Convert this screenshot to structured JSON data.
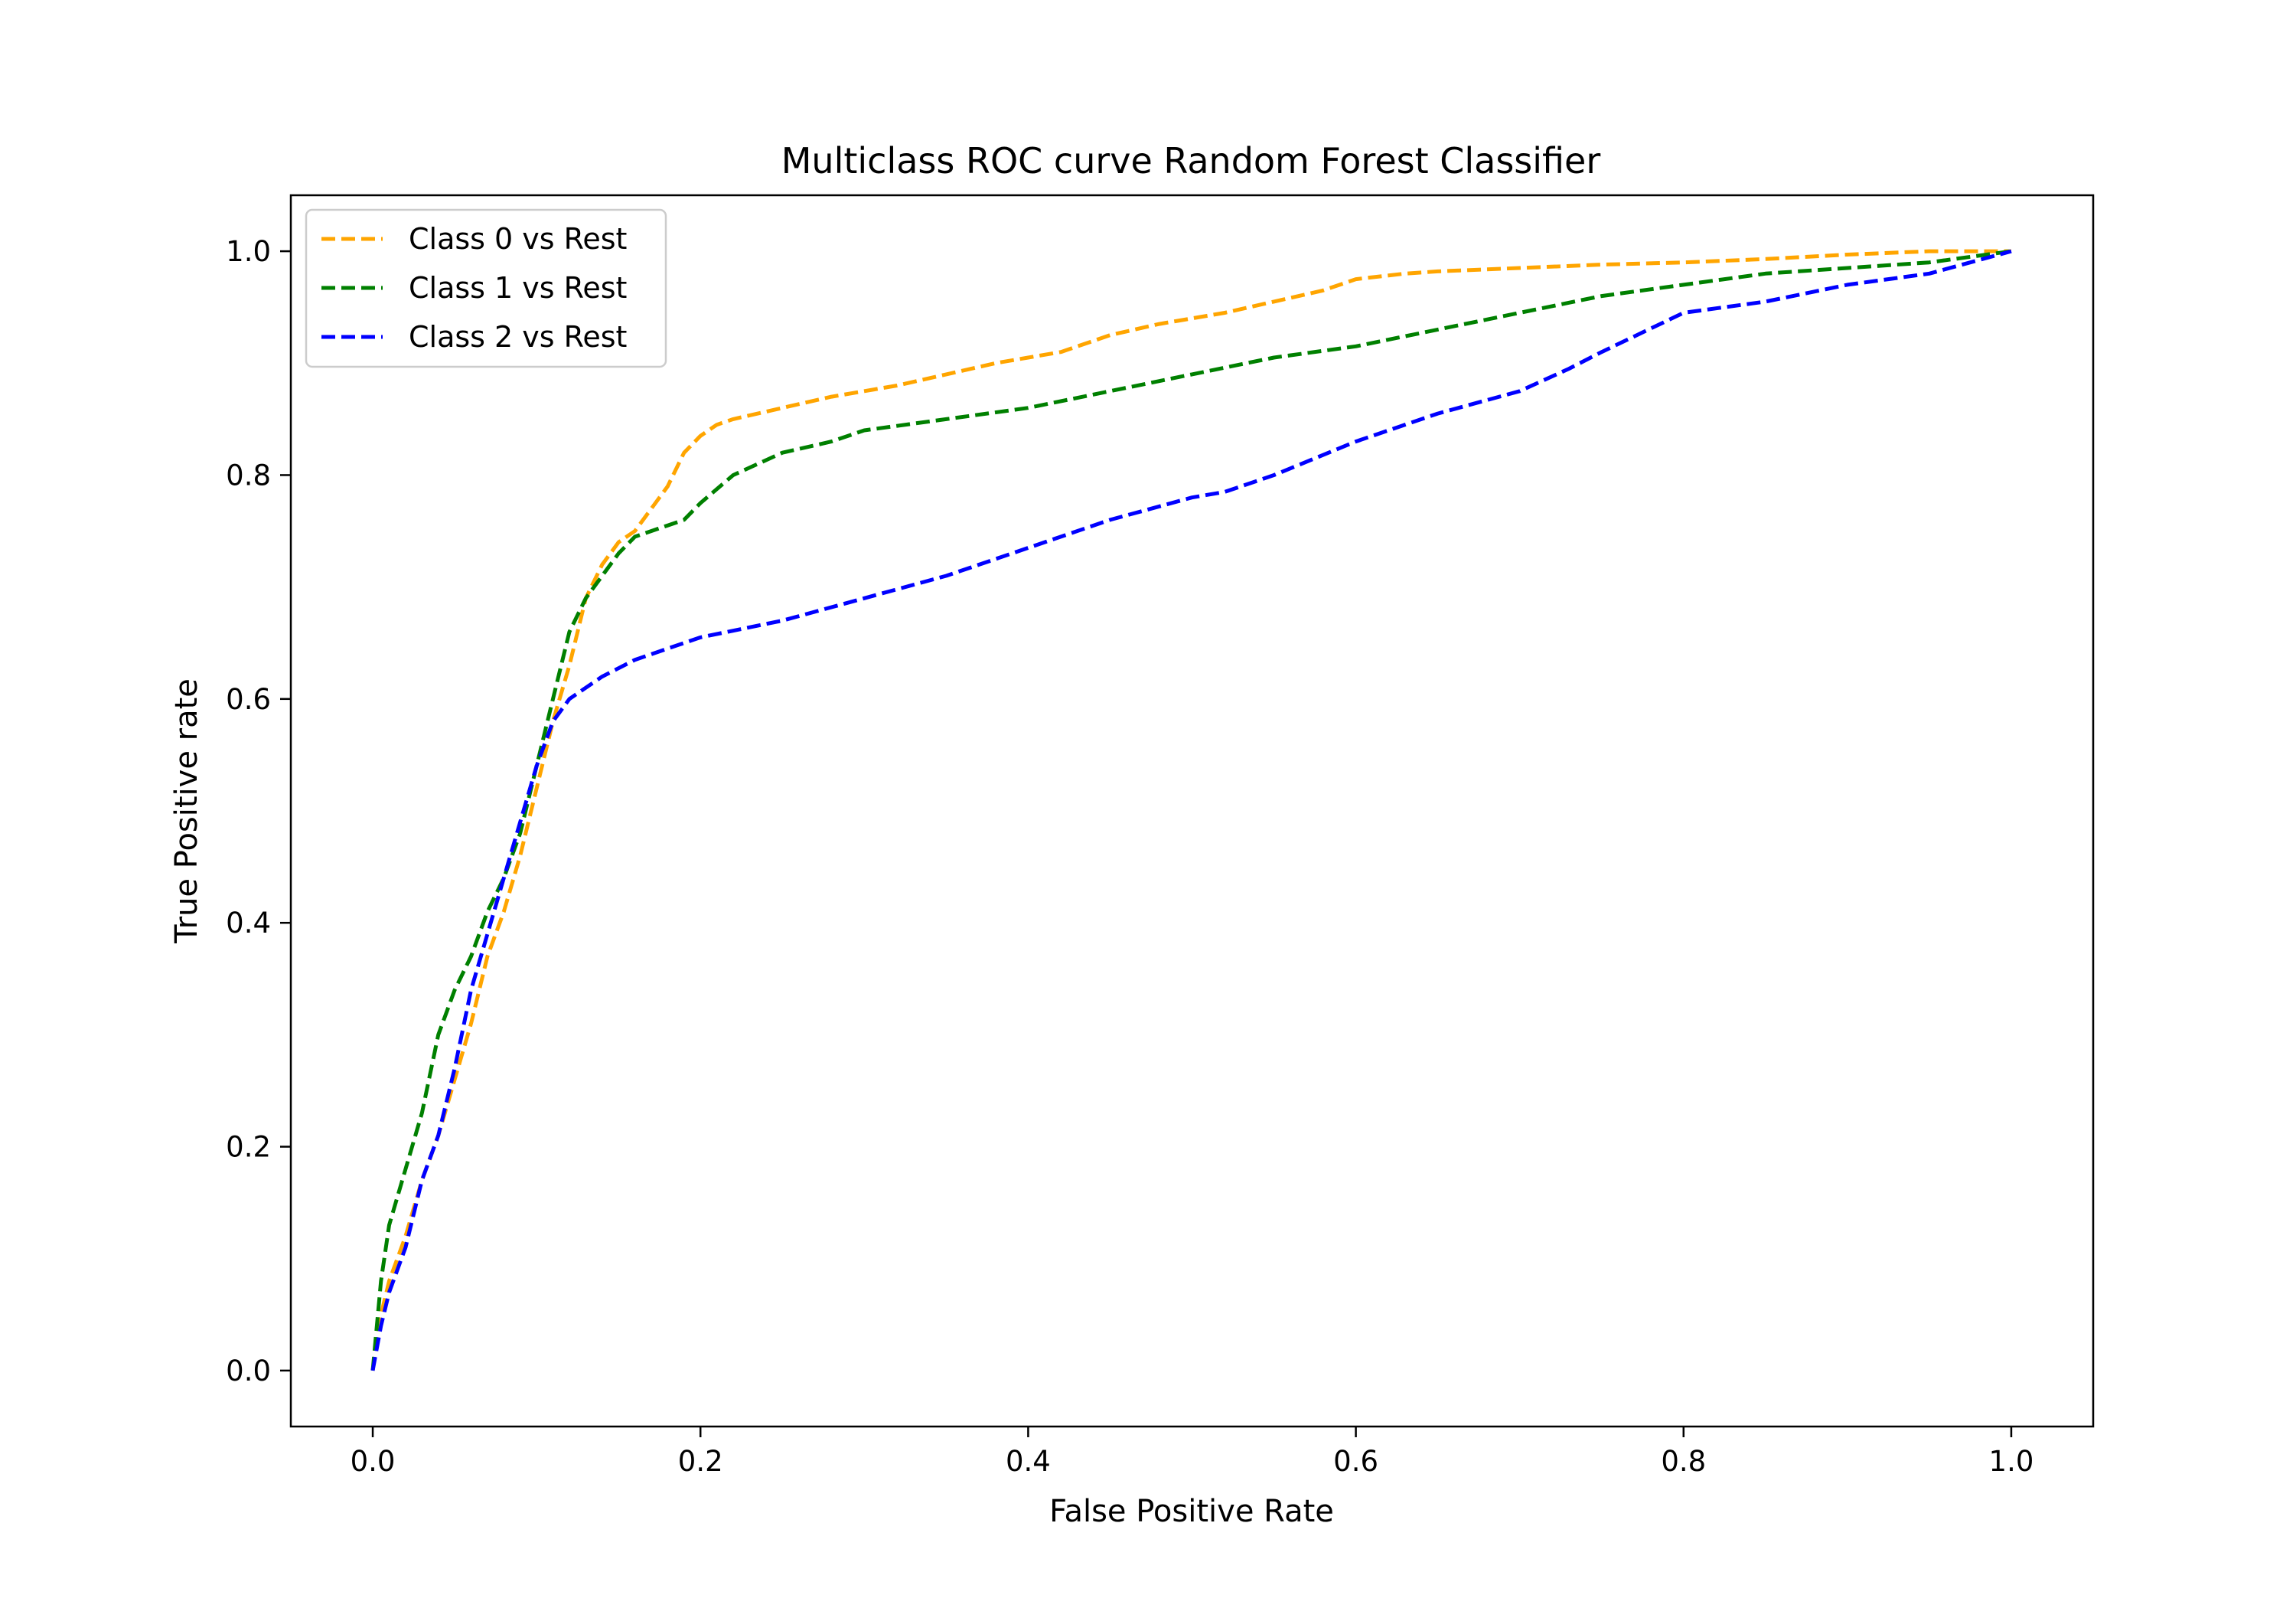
{
  "chart_data": {
    "type": "line",
    "title": "Multiclass ROC curve Random Forest Classifier",
    "xlabel": "False Positive Rate",
    "ylabel": "True Positive rate",
    "xlim": [
      -0.05,
      1.05
    ],
    "ylim": [
      -0.05,
      1.05
    ],
    "xticks": [
      "0.0",
      "0.2",
      "0.4",
      "0.6",
      "0.8",
      "1.0"
    ],
    "yticks": [
      "0.0",
      "0.2",
      "0.4",
      "0.6",
      "0.8",
      "1.0"
    ],
    "grid": false,
    "legend_position": "upper-left",
    "line_style": "dashed",
    "series": [
      {
        "name": "Class 0 vs Rest",
        "color": "#FFA500",
        "x": [
          0,
          0.005,
          0.01,
          0.02,
          0.03,
          0.04,
          0.05,
          0.06,
          0.07,
          0.08,
          0.09,
          0.1,
          0.11,
          0.12,
          0.13,
          0.14,
          0.15,
          0.16,
          0.17,
          0.18,
          0.19,
          0.2,
          0.21,
          0.22,
          0.25,
          0.28,
          0.3,
          0.32,
          0.35,
          0.38,
          0.4,
          0.42,
          0.45,
          0.48,
          0.5,
          0.52,
          0.55,
          0.58,
          0.6,
          0.63,
          0.65,
          0.7,
          0.75,
          0.8,
          0.85,
          0.9,
          0.95,
          1.0
        ],
        "y": [
          0,
          0.05,
          0.08,
          0.12,
          0.17,
          0.21,
          0.26,
          0.31,
          0.37,
          0.41,
          0.46,
          0.52,
          0.58,
          0.63,
          0.69,
          0.72,
          0.74,
          0.75,
          0.77,
          0.79,
          0.82,
          0.835,
          0.845,
          0.85,
          0.86,
          0.87,
          0.875,
          0.88,
          0.89,
          0.9,
          0.905,
          0.91,
          0.925,
          0.935,
          0.94,
          0.945,
          0.955,
          0.965,
          0.975,
          0.98,
          0.982,
          0.985,
          0.988,
          0.99,
          0.993,
          0.997,
          1.0,
          1.0
        ]
      },
      {
        "name": "Class 1 vs Rest",
        "color": "#008000",
        "x": [
          0,
          0.005,
          0.01,
          0.02,
          0.03,
          0.04,
          0.05,
          0.06,
          0.07,
          0.08,
          0.09,
          0.1,
          0.11,
          0.12,
          0.13,
          0.14,
          0.15,
          0.16,
          0.18,
          0.19,
          0.2,
          0.22,
          0.25,
          0.28,
          0.3,
          0.35,
          0.4,
          0.45,
          0.5,
          0.55,
          0.6,
          0.65,
          0.7,
          0.75,
          0.8,
          0.85,
          0.9,
          0.95,
          1.0
        ],
        "y": [
          0,
          0.08,
          0.13,
          0.18,
          0.23,
          0.3,
          0.34,
          0.37,
          0.41,
          0.44,
          0.48,
          0.54,
          0.6,
          0.66,
          0.69,
          0.71,
          0.73,
          0.745,
          0.755,
          0.76,
          0.775,
          0.8,
          0.82,
          0.83,
          0.84,
          0.85,
          0.86,
          0.875,
          0.89,
          0.905,
          0.915,
          0.93,
          0.945,
          0.96,
          0.97,
          0.98,
          0.985,
          0.99,
          1.0
        ]
      },
      {
        "name": "Class 2 vs Rest",
        "color": "#0000FF",
        "x": [
          0,
          0.005,
          0.01,
          0.02,
          0.03,
          0.04,
          0.05,
          0.06,
          0.07,
          0.08,
          0.09,
          0.1,
          0.11,
          0.12,
          0.13,
          0.14,
          0.16,
          0.18,
          0.2,
          0.25,
          0.3,
          0.35,
          0.4,
          0.45,
          0.5,
          0.52,
          0.55,
          0.6,
          0.65,
          0.7,
          0.73,
          0.75,
          0.8,
          0.85,
          0.9,
          0.95,
          1.0
        ],
        "y": [
          0,
          0.04,
          0.07,
          0.11,
          0.17,
          0.21,
          0.27,
          0.34,
          0.39,
          0.44,
          0.49,
          0.54,
          0.58,
          0.6,
          0.61,
          0.62,
          0.635,
          0.645,
          0.655,
          0.67,
          0.69,
          0.71,
          0.735,
          0.76,
          0.78,
          0.785,
          0.8,
          0.83,
          0.855,
          0.875,
          0.895,
          0.91,
          0.945,
          0.955,
          0.97,
          0.98,
          1.0
        ]
      }
    ]
  }
}
